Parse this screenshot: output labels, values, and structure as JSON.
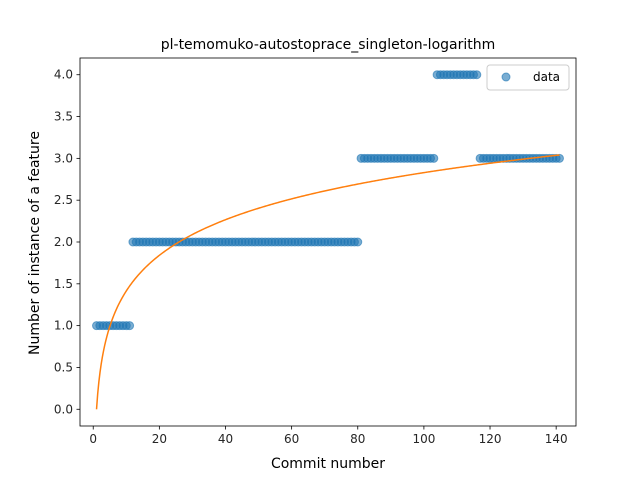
{
  "chart_data": {
    "type": "scatter",
    "title": "pl-temomuko-autostoprace_singleton-logarithm",
    "xlabel": "Commit number",
    "ylabel": "Number of instance of a feature",
    "xlim": [
      -4,
      146
    ],
    "ylim": [
      -0.2,
      4.2
    ],
    "xticks": [
      0,
      20,
      40,
      60,
      80,
      100,
      120,
      140
    ],
    "yticks": [
      0.0,
      0.5,
      1.0,
      1.5,
      2.0,
      2.5,
      3.0,
      3.5,
      4.0
    ],
    "xtick_labels": [
      "0",
      "20",
      "40",
      "60",
      "80",
      "100",
      "120",
      "140"
    ],
    "ytick_labels": [
      "0.0",
      "0.5",
      "1.0",
      "1.5",
      "2.0",
      "2.5",
      "3.0",
      "3.5",
      "4.0"
    ],
    "grid": false,
    "legend": {
      "entries": [
        "data"
      ],
      "placement": "top-right"
    },
    "series": [
      {
        "name": "data",
        "kind": "scatter",
        "color": "#1f77b4",
        "segments": [
          {
            "x_start": 1,
            "x_end": 11,
            "y": 1
          },
          {
            "x_start": 12,
            "x_end": 80,
            "y": 2
          },
          {
            "x_start": 81,
            "x_end": 103,
            "y": 3
          },
          {
            "x_start": 104,
            "x_end": 116,
            "y": 4
          },
          {
            "x_start": 117,
            "x_end": 141,
            "y": 3
          }
        ]
      },
      {
        "kind": "line",
        "color": "#ff7f0e",
        "model": "logarithmic",
        "a": 0.0,
        "b": 0.6144,
        "x_range": [
          1,
          141
        ]
      }
    ]
  }
}
